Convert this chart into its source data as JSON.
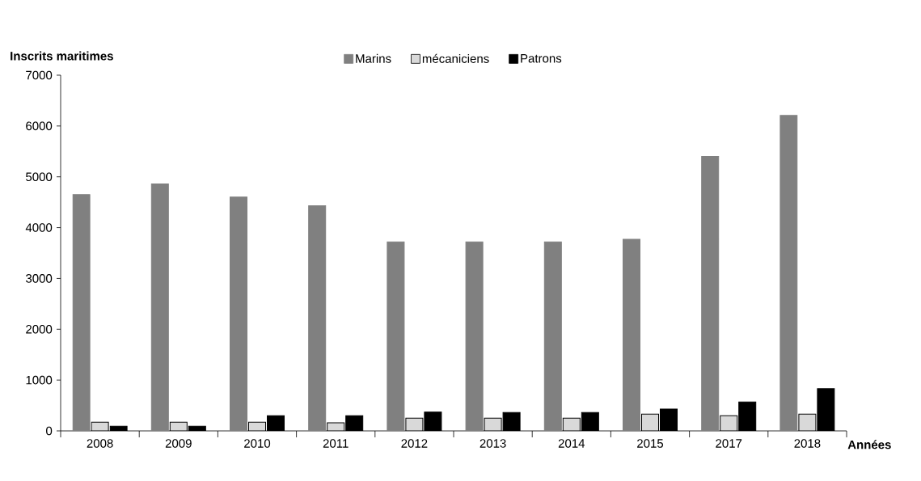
{
  "chart_data": {
    "type": "bar",
    "ylabel": "Inscrits maritimes",
    "xlabel": "Années",
    "categories": [
      "2008",
      "2009",
      "2010",
      "2011",
      "2012",
      "2013",
      "2014",
      "2015",
      "2017",
      "2018"
    ],
    "series": [
      {
        "name": "Marins",
        "color": "#808080",
        "values": [
          4650,
          4860,
          4600,
          4430,
          3720,
          3720,
          3720,
          3770,
          5400,
          6210
        ]
      },
      {
        "name": "mécaniciens",
        "color": "#d9d9d9",
        "values": [
          170,
          170,
          170,
          160,
          250,
          250,
          250,
          330,
          300,
          330
        ]
      },
      {
        "name": "Patrons",
        "color": "#000000",
        "values": [
          90,
          90,
          300,
          300,
          370,
          360,
          360,
          430,
          570,
          830
        ]
      }
    ],
    "ylim": [
      0,
      7000
    ],
    "yticks": [
      0,
      1000,
      2000,
      3000,
      4000,
      5000,
      6000,
      7000
    ],
    "grid": false,
    "legend": "top"
  }
}
